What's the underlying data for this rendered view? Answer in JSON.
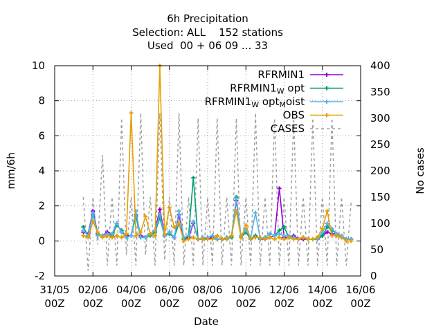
{
  "chart_data": {
    "type": "line",
    "title_lines": [
      "6h Precipitation",
      "Selection: ALL    152 stations",
      "Used  00 + 06 09 ... 33"
    ],
    "xlabel": "Date",
    "ylabel": "mm/6h",
    "y2label": "No cases",
    "ylim": [
      -2,
      10
    ],
    "y2lim": [
      0,
      400
    ],
    "yticks": [
      "-2",
      "0",
      "2",
      "4",
      "6",
      "8",
      "10"
    ],
    "y2ticks": [
      "0",
      "50",
      "100",
      "150",
      "200",
      "250",
      "300",
      "350",
      "400"
    ],
    "xlim_days": [
      0,
      16
    ],
    "xticks": [
      {
        "day": 0,
        "line1": "31/05",
        "line2": "00Z"
      },
      {
        "day": 2,
        "line1": "02/06",
        "line2": "00Z"
      },
      {
        "day": 4,
        "line1": "04/06",
        "line2": "00Z"
      },
      {
        "day": 6,
        "line1": "06/06",
        "line2": "00Z"
      },
      {
        "day": 8,
        "line1": "08/06",
        "line2": "00Z"
      },
      {
        "day": 10,
        "line1": "10/06",
        "line2": "00Z"
      },
      {
        "day": 12,
        "line1": "12/06",
        "line2": "00Z"
      },
      {
        "day": 14,
        "line1": "14/06",
        "line2": "00Z"
      },
      {
        "day": 16,
        "line1": "16/06",
        "line2": "00Z"
      }
    ],
    "grid": true,
    "legend_position": "top-right",
    "legend": [
      {
        "label": "RFRMIN1",
        "sub_parts": [],
        "color": "#9400d3",
        "style": "solid",
        "marker": "plus"
      },
      {
        "label": "RFRMIN1",
        "sub_parts": [
          {
            "sub": "W",
            "text": " opt"
          }
        ],
        "color": "#009e73",
        "style": "solid",
        "marker": "plus"
      },
      {
        "label": "RFRMIN1",
        "sub_parts": [
          {
            "sub": "W",
            "text": " opt"
          },
          {
            "sub": "M",
            "text": "oist"
          }
        ],
        "color": "#56b4e9",
        "style": "solid",
        "marker": "plus"
      },
      {
        "label": "OBS",
        "sub_parts": [],
        "color": "#e69f00",
        "style": "solid",
        "marker": "plus"
      },
      {
        "label": "CASES",
        "sub_parts": [],
        "color": "#a0a0a0",
        "style": "dashed",
        "marker": "none"
      }
    ],
    "cases_series": {
      "name": "CASES",
      "axis": "y2",
      "x_days": [
        1.5,
        1.75,
        2.0,
        2.25,
        2.5,
        2.75,
        3.0,
        3.25,
        3.5,
        3.75,
        4.0,
        4.25,
        4.5,
        4.75,
        5.0,
        5.25,
        5.5,
        5.75,
        6.0,
        6.25,
        6.5,
        6.75,
        7.0,
        7.25,
        7.5,
        7.75,
        8.0,
        8.25,
        8.5,
        8.75,
        9.0,
        9.25,
        9.5,
        9.75,
        10.0,
        10.25,
        10.5,
        10.75,
        11.0,
        11.25,
        11.5,
        11.75,
        12.0,
        12.25,
        12.5,
        12.75,
        13.0,
        13.25,
        13.5,
        13.75,
        14.0,
        14.25,
        14.5,
        14.75,
        15.0,
        15.25,
        15.5
      ],
      "values": [
        150,
        10,
        150,
        60,
        230,
        20,
        150,
        20,
        300,
        40,
        150,
        20,
        310,
        40,
        150,
        20,
        310,
        30,
        150,
        20,
        310,
        20,
        150,
        20,
        300,
        20,
        150,
        20,
        300,
        20,
        150,
        20,
        300,
        20,
        150,
        20,
        310,
        20,
        150,
        20,
        300,
        20,
        150,
        20,
        300,
        20,
        150,
        20,
        300,
        20,
        150,
        20,
        300,
        20,
        150,
        20,
        140
      ]
    },
    "series": [
      {
        "name": "RFRMIN1",
        "color": "#9400d3",
        "x_days": [
          1.5,
          1.75,
          2.0,
          2.25,
          2.5,
          2.75,
          3.0,
          3.25,
          3.5,
          3.75,
          4.0,
          4.25,
          4.5,
          4.75,
          5.0,
          5.25,
          5.5,
          5.75,
          6.0,
          6.25,
          6.5,
          6.75,
          7.0,
          7.25,
          7.5,
          7.75,
          8.0,
          8.25,
          8.5,
          8.75,
          9.0,
          9.25,
          9.5,
          9.75,
          10.0,
          10.25,
          10.5,
          10.75,
          11.0,
          11.25,
          11.5,
          11.75,
          12.0,
          12.25,
          12.5,
          12.75,
          13.0,
          13.25,
          13.5,
          13.75,
          14.0,
          14.25,
          14.5,
          14.75,
          15.0,
          15.25,
          15.5
        ],
        "values": [
          0.5,
          0.4,
          1.7,
          0.4,
          0.3,
          0.5,
          0.4,
          1.0,
          0.5,
          0.3,
          0.3,
          1.5,
          0.3,
          0.2,
          0.4,
          0.6,
          1.8,
          0.3,
          0.5,
          0.2,
          1.5,
          0.1,
          0.2,
          1.0,
          0.1,
          0.1,
          0.1,
          0.2,
          0.1,
          0.1,
          0.1,
          0.3,
          2.3,
          0.2,
          0.6,
          0.1,
          0.3,
          0.1,
          0.1,
          0.2,
          0.3,
          3.0,
          0.2,
          0.2,
          0.3,
          0.1,
          0.1,
          0.1,
          0.1,
          0.1,
          0.3,
          0.5,
          0.4,
          0.4,
          0.2,
          0.1,
          0.1
        ]
      },
      {
        "name": "RFRMIN1 W opt",
        "color": "#009e73",
        "x_days": [
          1.5,
          1.75,
          2.0,
          2.25,
          2.5,
          2.75,
          3.0,
          3.25,
          3.5,
          3.75,
          4.0,
          4.25,
          4.5,
          4.75,
          5.0,
          5.25,
          5.5,
          5.75,
          6.0,
          6.25,
          6.5,
          6.75,
          7.0,
          7.25,
          7.5,
          7.75,
          8.0,
          8.25,
          8.5,
          8.75,
          9.0,
          9.25,
          9.5,
          9.75,
          10.0,
          10.25,
          10.5,
          10.75,
          11.0,
          11.25,
          11.5,
          11.75,
          12.0,
          12.25,
          12.5,
          12.75,
          13.0,
          13.25,
          13.5,
          13.75,
          14.0,
          14.25,
          14.5,
          14.75,
          15.0,
          15.25,
          15.5
        ],
        "values": [
          0.8,
          0.3,
          1.5,
          0.4,
          0.3,
          0.4,
          0.3,
          0.9,
          0.6,
          0.2,
          0.3,
          1.4,
          0.2,
          0.2,
          0.3,
          0.5,
          1.3,
          0.3,
          0.4,
          0.2,
          1.0,
          0.1,
          0.3,
          3.6,
          0.1,
          0.1,
          0.2,
          0.3,
          0.1,
          0.1,
          0.2,
          0.2,
          2.5,
          0.2,
          0.5,
          0.1,
          0.3,
          0.1,
          0.2,
          0.4,
          0.3,
          0.6,
          0.8,
          0.2,
          0.2,
          0.1,
          0.2,
          0.1,
          0.1,
          0.1,
          0.3,
          0.8,
          0.6,
          0.4,
          0.3,
          0.1,
          0.1
        ]
      },
      {
        "name": "RFRMIN1 W opt M oist",
        "color": "#56b4e9",
        "x_days": [
          1.5,
          1.75,
          2.0,
          2.25,
          2.5,
          2.75,
          3.0,
          3.25,
          3.5,
          3.75,
          4.0,
          4.25,
          4.5,
          4.75,
          5.0,
          5.25,
          5.5,
          5.75,
          6.0,
          6.25,
          6.5,
          6.75,
          7.0,
          7.25,
          7.5,
          7.75,
          8.0,
          8.25,
          8.5,
          8.75,
          9.0,
          9.25,
          9.5,
          9.75,
          10.0,
          10.25,
          10.5,
          10.75,
          11.0,
          11.25,
          11.5,
          11.75,
          12.0,
          12.25,
          12.5,
          12.75,
          13.0,
          13.25,
          13.5,
          13.75,
          14.0,
          14.25,
          14.5,
          14.75,
          15.0,
          15.25,
          15.5
        ],
        "values": [
          0.6,
          0.3,
          1.6,
          0.3,
          0.3,
          0.4,
          0.4,
          1.0,
          0.5,
          0.2,
          0.3,
          1.7,
          0.2,
          0.2,
          0.4,
          0.6,
          1.5,
          0.3,
          0.5,
          0.2,
          1.7,
          0.2,
          0.3,
          1.1,
          0.1,
          0.2,
          0.2,
          0.3,
          0.1,
          0.1,
          0.2,
          0.3,
          2.4,
          0.3,
          0.6,
          0.2,
          1.6,
          0.1,
          0.2,
          0.4,
          0.3,
          0.4,
          0.3,
          0.3,
          0.2,
          0.1,
          0.2,
          0.1,
          0.1,
          0.1,
          0.5,
          1.0,
          0.7,
          0.4,
          0.3,
          0.1,
          0.1
        ]
      },
      {
        "name": "OBS",
        "color": "#e69f00",
        "x_days": [
          1.5,
          1.75,
          2.0,
          2.25,
          2.5,
          2.75,
          3.0,
          3.25,
          3.5,
          3.75,
          4.0,
          4.25,
          4.5,
          4.75,
          5.0,
          5.25,
          5.5,
          5.75,
          6.0,
          6.25,
          6.5,
          6.75,
          7.0,
          7.25,
          7.5,
          7.75,
          8.0,
          8.25,
          8.5,
          8.75,
          9.0,
          9.25,
          9.5,
          9.75,
          10.0,
          10.25,
          10.5,
          10.75,
          11.0,
          11.25,
          11.5,
          11.75,
          12.0,
          12.25,
          12.5,
          12.75,
          13.0,
          13.25,
          13.5,
          13.75,
          14.0,
          14.25,
          14.5,
          14.75,
          15.0,
          15.25,
          15.5
        ],
        "values": [
          0.3,
          0.2,
          1.1,
          0.5,
          0.2,
          0.3,
          0.2,
          0.3,
          0.2,
          0.4,
          7.3,
          0.3,
          0.5,
          1.4,
          0.4,
          0.3,
          10.0,
          0.4,
          1.9,
          0.8,
          1.0,
          0.0,
          0.1,
          0.2,
          0.1,
          0.1,
          0.1,
          0.1,
          0.3,
          0.1,
          0.1,
          0.3,
          1.7,
          0.2,
          0.9,
          0.1,
          0.2,
          0.2,
          0.1,
          0.2,
          0.1,
          0.2,
          0.1,
          0.2,
          0.1,
          0.1,
          0.2,
          0.1,
          0.1,
          0.2,
          0.7,
          1.7,
          0.3,
          0.3,
          0.2,
          0.0,
          0.0
        ]
      }
    ]
  }
}
